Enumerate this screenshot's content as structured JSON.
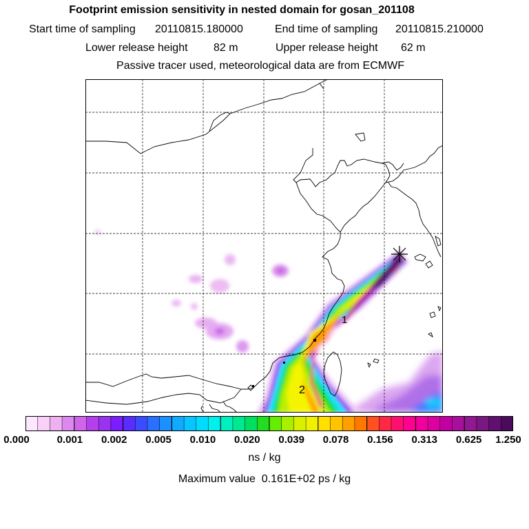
{
  "header": {
    "title": "Footprint emission sensitivity in nested domain for gosan_201108",
    "start_label": "Start time of sampling",
    "start_value": "20110815.180000",
    "end_label": "End time of sampling",
    "end_value": "20110815.210000",
    "lower_label": "Lower release height",
    "lower_value": "82 m",
    "upper_label": "Upper release height",
    "upper_value": "62 m",
    "note": "Passive tracer used, meteorological data are from ECMWF"
  },
  "map": {
    "label_1": "1",
    "label_2": "2"
  },
  "colorbar": {
    "ticks": [
      "0.000",
      "0.001",
      "0.002",
      "0.005",
      "0.010",
      "0.020",
      "0.039",
      "0.078",
      "0.156",
      "0.313",
      "0.625",
      "1.250"
    ],
    "colors": [
      "#fde8fd",
      "#f8d0f8",
      "#eeb0f0",
      "#dc88ec",
      "#cf66e9",
      "#b440ec",
      "#9933ee",
      "#7b1dff",
      "#5a2dff",
      "#3a4cff",
      "#2a70ff",
      "#1d90ff",
      "#10aaff",
      "#08c4ff",
      "#00dcff",
      "#00f0f0",
      "#00f0c0",
      "#00e890",
      "#00e060",
      "#22dd22",
      "#66ee00",
      "#a8f000",
      "#d8f000",
      "#f0f000",
      "#ffe000",
      "#ffc400",
      "#ffa000",
      "#ff7800",
      "#ff5020",
      "#ff2844",
      "#ff1070",
      "#ff0090",
      "#f0009c",
      "#dc00a0",
      "#c000a0",
      "#a8109c",
      "#901890",
      "#781880",
      "#601070",
      "#4a0c5a"
    ],
    "units": "ns / kg",
    "max_label": "Maximum value",
    "max_value": "0.161E+02",
    "max_units": "ps / kg"
  }
}
